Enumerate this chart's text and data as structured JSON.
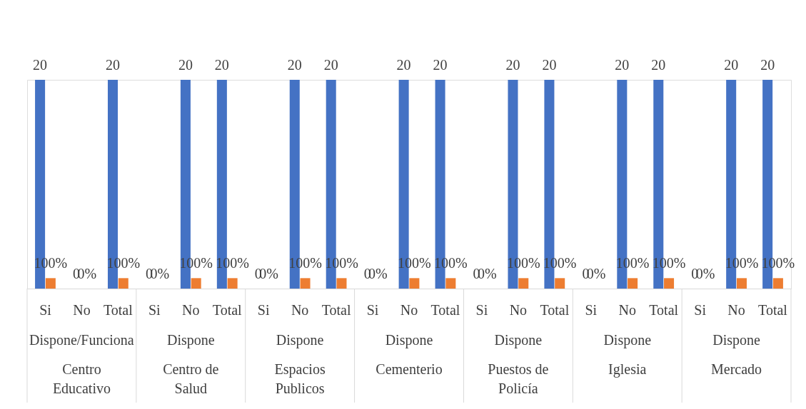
{
  "chart_data": {
    "type": "bar",
    "categories": [
      "Si",
      "No",
      "Total",
      "Si",
      "No",
      "Total",
      "Si",
      "No",
      "Total",
      "Si",
      "No",
      "Total",
      "Si",
      "No",
      "Total",
      "Si",
      "No",
      "Total",
      "Si",
      "No",
      "Total"
    ],
    "series": [
      {
        "color": "#4472c4",
        "values": [
          20,
          0,
          20,
          0,
          20,
          20,
          0,
          20,
          20,
          0,
          20,
          20,
          0,
          20,
          20,
          0,
          20,
          20,
          0,
          20,
          20
        ],
        "value_labels": [
          "20",
          "0",
          "20",
          "0",
          "20",
          "20",
          "0",
          "20",
          "20",
          "0",
          "20",
          "20",
          "0",
          "20",
          "20",
          "0",
          "20",
          "20",
          "0",
          "20",
          "20"
        ]
      },
      {
        "color": "#ed7d31",
        "values": [
          1,
          0,
          1,
          0,
          1,
          1,
          0,
          1,
          1,
          0,
          1,
          1,
          0,
          1,
          1,
          0,
          1,
          1,
          0,
          1,
          1
        ],
        "value_labels": [
          "100%",
          "0%",
          "100%",
          "0%",
          "100%",
          "100%",
          "0%",
          "100%",
          "100%",
          "0%",
          "100%",
          "100%",
          "0%",
          "100%",
          "100%",
          "0%",
          "100%",
          "100%",
          "0%",
          "100%",
          "100%"
        ]
      }
    ],
    "annotations": [
      "Dispone/Funciona",
      "Dispone",
      "Dispone",
      "Dispone",
      "Dispone",
      "Dispone",
      "Dispone",
      "Centro Educativo",
      "Centro de Salud",
      "Espacios Publicos",
      "Cementerio",
      "Puestos de Policía",
      "Iglesia",
      "Mercado"
    ],
    "grid": false
  }
}
